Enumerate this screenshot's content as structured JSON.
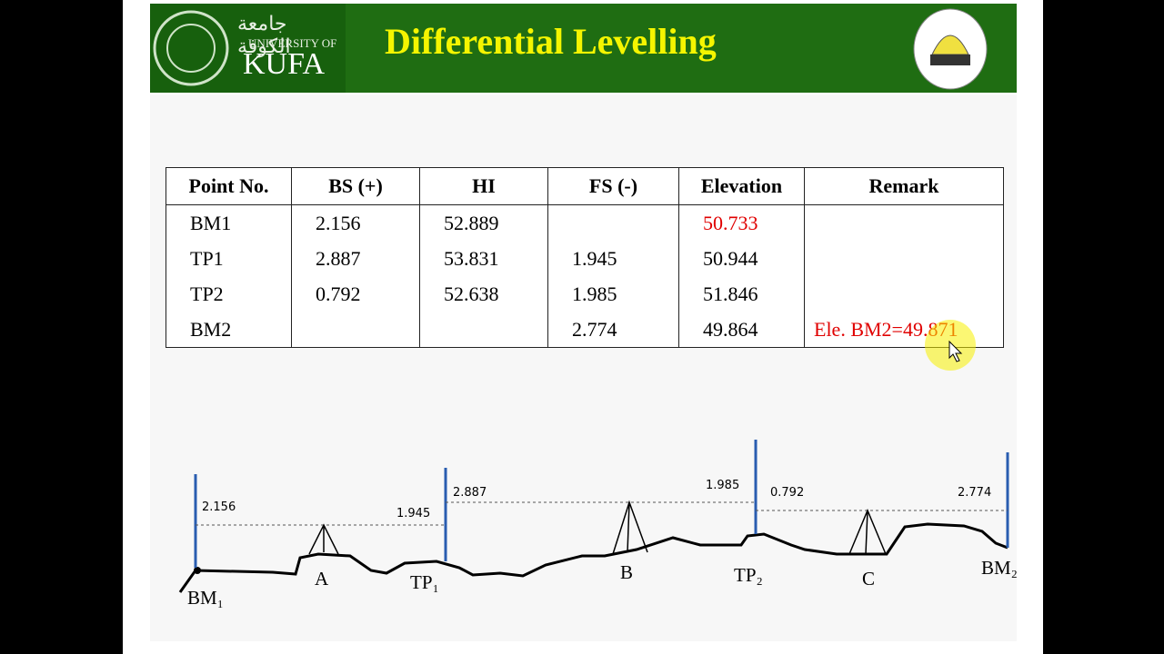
{
  "header": {
    "university_arabic": "جامعة الكوفة",
    "university_of": "UNIVERSITY OF",
    "university_name": "KUFA",
    "title": "Differential Levelling"
  },
  "table": {
    "columns": [
      "Point No.",
      "BS (+)",
      "HI",
      "FS (-)",
      "Elevation",
      "Remark"
    ],
    "rows": [
      [
        "BM1",
        "2.156",
        "52.889",
        "",
        "50.733",
        ""
      ],
      [
        "TP1",
        "2.887",
        "53.831",
        "1.945",
        "50.944",
        ""
      ],
      [
        "TP2",
        "0.792",
        "52.638",
        "1.985",
        "51.846",
        ""
      ],
      [
        "BM2",
        "",
        "",
        "2.774",
        "49.864",
        "Ele. BM2=49.871"
      ]
    ]
  },
  "diagram": {
    "readings": [
      "2.156",
      "1.945",
      "2.887",
      "1.985",
      "0.792",
      "2.774"
    ],
    "points": [
      "BM₁",
      "A",
      "TP₁",
      "B",
      "TP₂",
      "C",
      "BM₂"
    ]
  }
}
